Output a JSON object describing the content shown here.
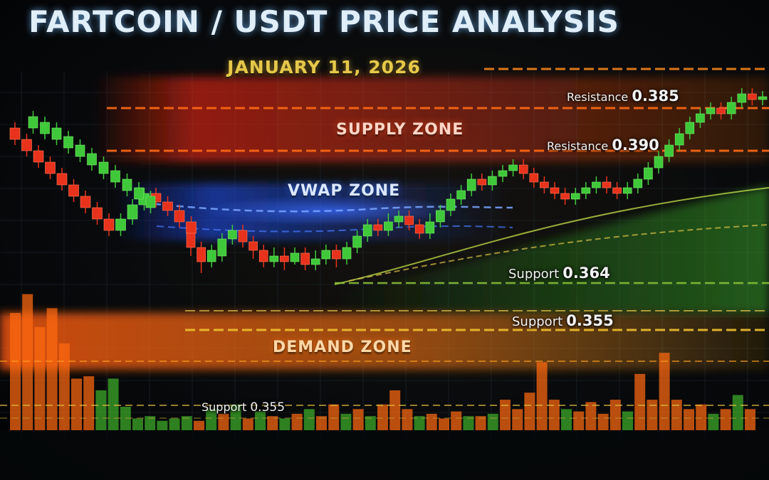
{
  "chart_data": {
    "type": "candlestick",
    "title": "FARTCOIN / USDT PRICE ANALYSIS",
    "subtitle": "JANUARY 11, 2026",
    "zones": [
      {
        "name": "SUPPLY ZONE",
        "color": "#ff3a1a"
      },
      {
        "name": "VWAP ZONE",
        "color": "#2f6bff"
      },
      {
        "name": "DEMAND ZONE",
        "color": "#ff7a12"
      }
    ],
    "levels": [
      {
        "label": "Resistance",
        "value": "0.385",
        "kind": "resistance"
      },
      {
        "label": "Resistance",
        "value": "0.390",
        "kind": "resistance"
      },
      {
        "label": "Support",
        "value": "0.364",
        "kind": "support"
      },
      {
        "label": "Support",
        "value": "0.355",
        "kind": "support"
      },
      {
        "label": "Support",
        "value": "0.355",
        "kind": "support"
      }
    ],
    "series": [
      {
        "candles": [
          [
            0.405,
            0.401,
            0.407,
            0.399
          ],
          [
            0.401,
            0.397,
            0.403,
            0.395
          ],
          [
            0.397,
            0.393,
            0.399,
            0.391
          ],
          [
            0.393,
            0.389,
            0.395,
            0.387
          ],
          [
            0.389,
            0.385,
            0.391,
            0.383
          ],
          [
            0.385,
            0.381,
            0.387,
            0.379
          ],
          [
            0.381,
            0.377,
            0.383,
            0.375
          ],
          [
            0.377,
            0.373,
            0.379,
            0.371
          ],
          [
            0.373,
            0.369,
            0.375,
            0.367
          ],
          [
            0.369,
            0.373,
            0.375,
            0.367
          ],
          [
            0.373,
            0.378,
            0.38,
            0.371
          ],
          [
            0.378,
            0.382,
            0.384,
            0.376
          ],
          [
            0.382,
            0.379,
            0.384,
            0.377
          ],
          [
            0.379,
            0.376,
            0.381,
            0.374
          ],
          [
            0.376,
            0.372,
            0.378,
            0.37
          ],
          [
            0.372,
            0.368,
            0.374,
            0.366
          ]
        ],
        "up_color": "#3fc83a",
        "down_color": "#e8321c"
      },
      {
        "candles": [
          [
            0.405,
            0.409,
            0.411,
            0.403
          ],
          [
            0.403,
            0.407,
            0.409,
            0.401
          ],
          [
            0.401,
            0.405,
            0.407,
            0.399
          ],
          [
            0.398,
            0.402,
            0.404,
            0.396
          ],
          [
            0.395,
            0.399,
            0.401,
            0.393
          ],
          [
            0.392,
            0.396,
            0.398,
            0.39
          ],
          [
            0.389,
            0.393,
            0.395,
            0.387
          ],
          [
            0.386,
            0.39,
            0.392,
            0.384
          ],
          [
            0.383,
            0.387,
            0.389,
            0.381
          ],
          [
            0.38,
            0.384,
            0.386,
            0.378
          ],
          [
            0.377,
            0.381,
            0.383,
            0.375
          ]
        ],
        "up_color": "#3fc83a",
        "down_color": "#e8321c"
      },
      {
        "candles": [
          [
            0.368,
            0.363,
            0.37,
            0.36
          ],
          [
            0.363,
            0.358,
            0.365,
            0.354
          ],
          [
            0.358,
            0.362,
            0.364,
            0.356
          ],
          [
            0.36,
            0.366,
            0.368,
            0.358
          ],
          [
            0.366,
            0.369,
            0.371,
            0.364
          ],
          [
            0.369,
            0.365,
            0.371,
            0.363
          ],
          [
            0.365,
            0.362,
            0.367,
            0.359
          ],
          [
            0.362,
            0.358,
            0.364,
            0.356
          ],
          [
            0.358,
            0.36,
            0.363,
            0.356
          ],
          [
            0.36,
            0.358,
            0.363,
            0.355
          ],
          [
            0.358,
            0.361,
            0.363,
            0.357
          ],
          [
            0.361,
            0.357,
            0.363,
            0.355
          ],
          [
            0.357,
            0.359,
            0.362,
            0.355
          ],
          [
            0.359,
            0.362,
            0.364,
            0.357
          ],
          [
            0.362,
            0.359,
            0.364,
            0.356
          ],
          [
            0.359,
            0.363,
            0.365,
            0.357
          ],
          [
            0.363,
            0.367,
            0.369,
            0.361
          ],
          [
            0.367,
            0.371,
            0.373,
            0.365
          ],
          [
            0.371,
            0.369,
            0.373,
            0.367
          ],
          [
            0.369,
            0.372,
            0.375,
            0.367
          ],
          [
            0.372,
            0.374,
            0.376,
            0.37
          ],
          [
            0.374,
            0.371,
            0.376,
            0.369
          ],
          [
            0.371,
            0.368,
            0.373,
            0.366
          ],
          [
            0.368,
            0.372,
            0.375,
            0.366
          ],
          [
            0.372,
            0.376,
            0.378,
            0.37
          ],
          [
            0.376,
            0.38,
            0.382,
            0.374
          ],
          [
            0.38,
            0.383,
            0.385,
            0.378
          ],
          [
            0.383,
            0.387,
            0.389,
            0.381
          ],
          [
            0.387,
            0.385,
            0.389,
            0.383
          ],
          [
            0.385,
            0.388,
            0.39,
            0.383
          ],
          [
            0.388,
            0.39,
            0.392,
            0.386
          ],
          [
            0.39,
            0.392,
            0.394,
            0.388
          ],
          [
            0.392,
            0.389,
            0.394,
            0.387
          ],
          [
            0.389,
            0.386,
            0.391,
            0.384
          ],
          [
            0.386,
            0.384,
            0.388,
            0.382
          ],
          [
            0.384,
            0.382,
            0.386,
            0.38
          ],
          [
            0.382,
            0.38,
            0.384,
            0.378
          ],
          [
            0.38,
            0.382,
            0.384,
            0.378
          ],
          [
            0.382,
            0.384,
            0.386,
            0.38
          ],
          [
            0.384,
            0.386,
            0.388,
            0.382
          ],
          [
            0.386,
            0.384,
            0.388,
            0.382
          ],
          [
            0.384,
            0.382,
            0.386,
            0.38
          ],
          [
            0.382,
            0.384,
            0.386,
            0.38
          ],
          [
            0.384,
            0.387,
            0.389,
            0.382
          ],
          [
            0.387,
            0.391,
            0.393,
            0.385
          ],
          [
            0.391,
            0.395,
            0.397,
            0.389
          ],
          [
            0.395,
            0.399,
            0.401,
            0.393
          ],
          [
            0.399,
            0.403,
            0.405,
            0.397
          ],
          [
            0.403,
            0.407,
            0.409,
            0.401
          ],
          [
            0.407,
            0.41,
            0.412,
            0.405
          ],
          [
            0.41,
            0.412,
            0.414,
            0.408
          ],
          [
            0.412,
            0.41,
            0.414,
            0.408
          ],
          [
            0.41,
            0.414,
            0.416,
            0.408
          ],
          [
            0.414,
            0.417,
            0.419,
            0.412
          ],
          [
            0.417,
            0.415,
            0.419,
            0.413
          ],
          [
            0.415,
            0.416,
            0.418,
            0.413
          ]
        ],
        "up_color": "#3fc83a",
        "down_color": "#e8321c"
      }
    ],
    "ylim": [
      0.345,
      0.425
    ],
    "volume": [
      {
        "v": 0.5,
        "c": "#ff6a10"
      },
      {
        "v": 0.58,
        "c": "#ff6a10"
      },
      {
        "v": 0.44,
        "c": "#ff6a10"
      },
      {
        "v": 0.52,
        "c": "#ff6a10"
      },
      {
        "v": 0.37,
        "c": "#ff6a10"
      },
      {
        "v": 0.22,
        "c": "#ff6a10"
      },
      {
        "v": 0.23,
        "c": "#ff6a10"
      },
      {
        "v": 0.17,
        "c": "#3fae2a"
      },
      {
        "v": 0.22,
        "c": "#3fae2a"
      },
      {
        "v": 0.1,
        "c": "#3fae2a"
      },
      {
        "v": 0.05,
        "c": "#3fae2a"
      },
      {
        "v": 0.06,
        "c": "#3fae2a"
      },
      {
        "v": 0.04,
        "c": "#3fae2a"
      },
      {
        "v": 0.05,
        "c": "#3fae2a"
      },
      {
        "v": 0.06,
        "c": "#3fae2a"
      },
      {
        "v": 0.04,
        "c": "#ff6a10"
      },
      {
        "v": 0.09,
        "c": "#3fae2a"
      },
      {
        "v": 0.07,
        "c": "#ff6a10"
      },
      {
        "v": 0.11,
        "c": "#3fae2a"
      },
      {
        "v": 0.05,
        "c": "#ff6a10"
      },
      {
        "v": 0.08,
        "c": "#3fae2a"
      },
      {
        "v": 0.06,
        "c": "#ff6a10"
      },
      {
        "v": 0.05,
        "c": "#3fae2a"
      },
      {
        "v": 0.07,
        "c": "#ff6a10"
      },
      {
        "v": 0.09,
        "c": "#3fae2a"
      },
      {
        "v": 0.06,
        "c": "#ff6a10"
      },
      {
        "v": 0.11,
        "c": "#ff6a10"
      },
      {
        "v": 0.07,
        "c": "#3fae2a"
      },
      {
        "v": 0.09,
        "c": "#ff6a10"
      },
      {
        "v": 0.06,
        "c": "#3fae2a"
      },
      {
        "v": 0.11,
        "c": "#ff6a10"
      },
      {
        "v": 0.17,
        "c": "#ff6a10"
      },
      {
        "v": 0.09,
        "c": "#ff6a10"
      },
      {
        "v": 0.06,
        "c": "#3fae2a"
      },
      {
        "v": 0.07,
        "c": "#ff6a10"
      },
      {
        "v": 0.05,
        "c": "#ff6a10"
      },
      {
        "v": 0.08,
        "c": "#ff6a10"
      },
      {
        "v": 0.06,
        "c": "#3fae2a"
      },
      {
        "v": 0.06,
        "c": "#ff6a10"
      },
      {
        "v": 0.07,
        "c": "#3fae2a"
      },
      {
        "v": 0.13,
        "c": "#ff6a10"
      },
      {
        "v": 0.09,
        "c": "#ff6a10"
      },
      {
        "v": 0.16,
        "c": "#ff6a10"
      },
      {
        "v": 0.29,
        "c": "#ff6a10"
      },
      {
        "v": 0.13,
        "c": "#ff6a10"
      },
      {
        "v": 0.09,
        "c": "#3fae2a"
      },
      {
        "v": 0.08,
        "c": "#ff6a10"
      },
      {
        "v": 0.12,
        "c": "#ff6a10"
      },
      {
        "v": 0.07,
        "c": "#ff6a10"
      },
      {
        "v": 0.13,
        "c": "#ff6a10"
      },
      {
        "v": 0.08,
        "c": "#3fae2a"
      },
      {
        "v": 0.24,
        "c": "#ff6a10"
      },
      {
        "v": 0.13,
        "c": "#ff6a10"
      },
      {
        "v": 0.33,
        "c": "#ff6a10"
      },
      {
        "v": 0.13,
        "c": "#ff6a10"
      },
      {
        "v": 0.09,
        "c": "#ff6a10"
      },
      {
        "v": 0.11,
        "c": "#ff6a10"
      },
      {
        "v": 0.07,
        "c": "#3fae2a"
      },
      {
        "v": 0.09,
        "c": "#ff6a10"
      },
      {
        "v": 0.15,
        "c": "#3fae2a"
      },
      {
        "v": 0.09,
        "c": "#ff6a10"
      }
    ],
    "grid": true,
    "legend": "none"
  }
}
